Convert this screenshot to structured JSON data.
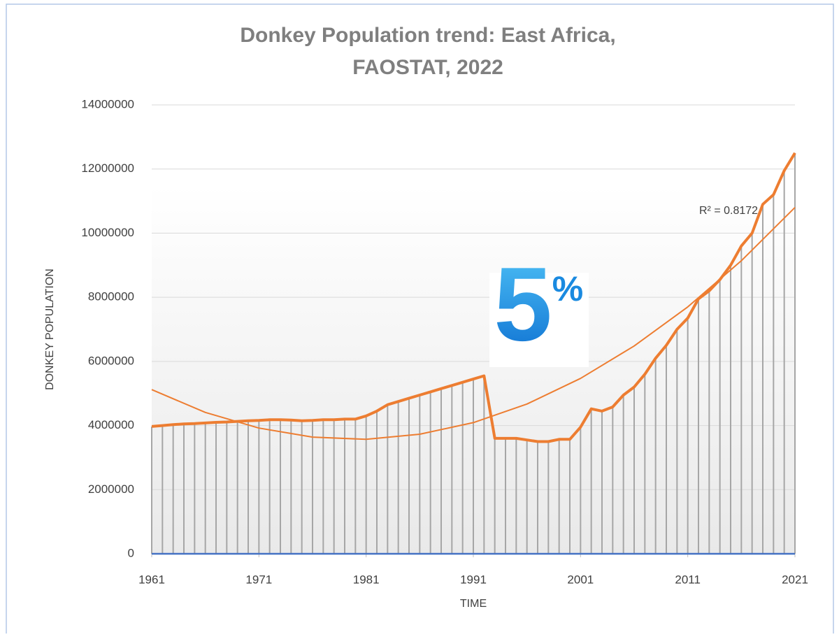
{
  "chart_data": {
    "type": "line",
    "title": [
      "Donkey Population trend: East Africa,",
      "FAOSTAT, 2022"
    ],
    "x_label": "TIME",
    "y_label": "DONKEY POPULATION",
    "x": [
      1961,
      1962,
      1963,
      1964,
      1965,
      1966,
      1967,
      1968,
      1969,
      1970,
      1971,
      1972,
      1973,
      1974,
      1975,
      1976,
      1977,
      1978,
      1979,
      1980,
      1981,
      1982,
      1983,
      1984,
      1985,
      1986,
      1987,
      1988,
      1989,
      1990,
      1991,
      1992,
      1993,
      1994,
      1995,
      1996,
      1997,
      1998,
      1999,
      2000,
      2001,
      2002,
      2003,
      2004,
      2005,
      2006,
      2007,
      2008,
      2009,
      2010,
      2011,
      2012,
      2013,
      2014,
      2015,
      2016,
      2017,
      2018,
      2019,
      2020,
      2021
    ],
    "series": [
      {
        "color": "#ed7d31",
        "values": [
          3970000,
          4000000,
          4030000,
          4050000,
          4060000,
          4080000,
          4100000,
          4110000,
          4130000,
          4150000,
          4160000,
          4180000,
          4180000,
          4170000,
          4150000,
          4160000,
          4180000,
          4180000,
          4200000,
          4200000,
          4300000,
          4450000,
          4650000,
          4750000,
          4850000,
          4950000,
          5050000,
          5150000,
          5250000,
          5350000,
          5450000,
          5550000,
          3600000,
          3600000,
          3600000,
          3550000,
          3500000,
          3500000,
          3570000,
          3570000,
          3950000,
          4520000,
          4450000,
          4580000,
          4950000,
          5200000,
          5600000,
          6100000,
          6500000,
          7000000,
          7350000,
          7950000,
          8200000,
          8550000,
          9000000,
          9600000,
          10000000,
          10900000,
          11200000,
          11950000,
          12500000
        ]
      },
      {
        "color": "#4472c4",
        "values": [
          0,
          0,
          0,
          0,
          0,
          0,
          0,
          0,
          0,
          0,
          0,
          0,
          0,
          0,
          0,
          0,
          0,
          0,
          0,
          0,
          0,
          0,
          0,
          0,
          0,
          0,
          0,
          0,
          0,
          0,
          0,
          0,
          0,
          0,
          0,
          0,
          0,
          0,
          0,
          0,
          0,
          0,
          0,
          0,
          0,
          0,
          0,
          0,
          0,
          0,
          0,
          0,
          0,
          0,
          0,
          0,
          0,
          0,
          0,
          0,
          0
        ]
      }
    ],
    "drop_line_color": "#a6a6a6",
    "trendline": {
      "color": "#ed7d31",
      "label": "R² = 0.8172",
      "x": [
        1961,
        1966,
        1971,
        1976,
        1981,
        1986,
        1991,
        1996,
        2001,
        2006,
        2011,
        2016,
        2021
      ],
      "values": [
        5120000,
        4410000,
        3920000,
        3640000,
        3570000,
        3730000,
        4090000,
        4670000,
        5470000,
        6480000,
        7700000,
        9140000,
        10800000
      ]
    },
    "badge": {
      "number": "5",
      "symbol": "%"
    },
    "xlim": [
      1961,
      2021
    ],
    "xticks": [
      1961,
      1971,
      1981,
      1991,
      2001,
      2011,
      2021
    ],
    "ylim": [
      0,
      14000000
    ],
    "yticks": [
      0,
      2000000,
      4000000,
      6000000,
      8000000,
      10000000,
      12000000,
      14000000
    ],
    "grid": true
  }
}
